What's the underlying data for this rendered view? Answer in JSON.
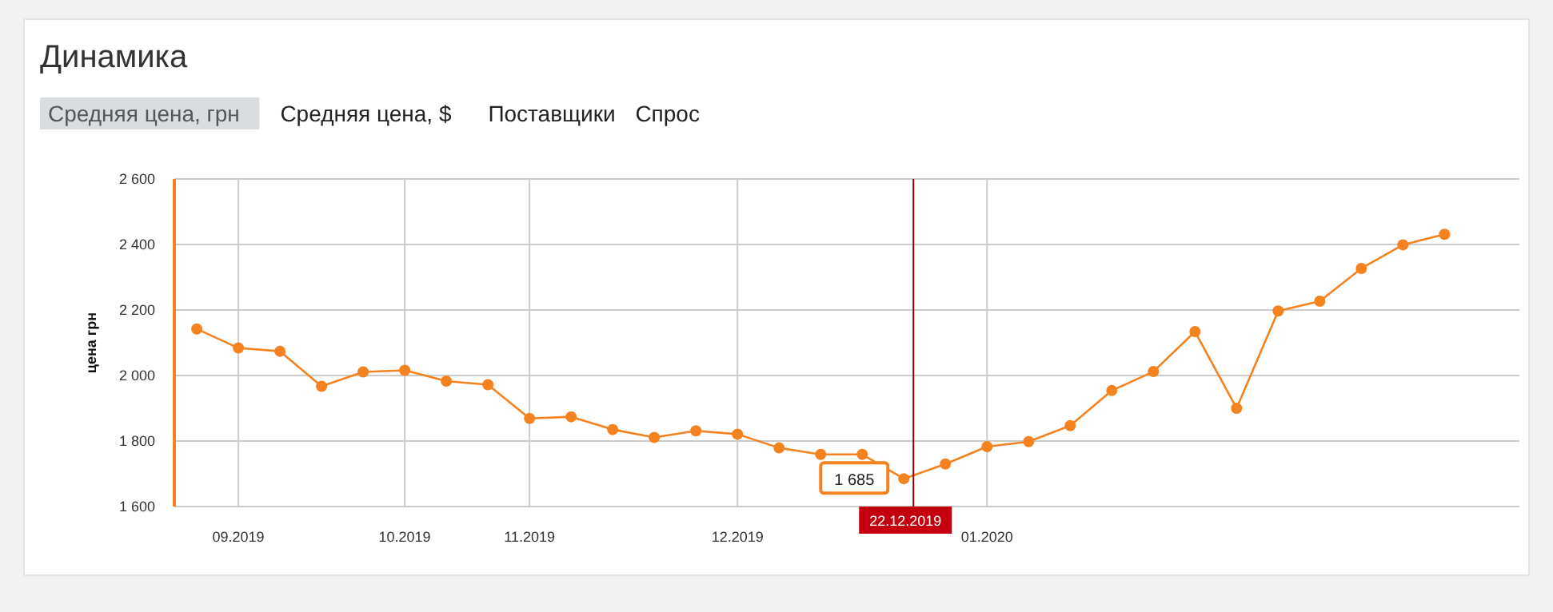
{
  "chart_data": {
    "type": "line",
    "title": "Динамика",
    "ylabel": "цена грн",
    "annotations": [
      "Средняя цена, грн",
      "Средняя цена, $",
      "Поставщики",
      "Спрос",
      "22.12.2019"
    ],
    "categories": [
      null,
      "09.2019",
      null,
      null,
      null,
      "10.2019",
      null,
      null,
      "11.2019",
      null,
      null,
      null,
      null,
      "12.2019",
      null,
      null,
      null,
      null,
      null,
      "01.2020",
      null,
      null,
      null,
      null,
      null,
      null,
      null,
      null,
      null,
      null,
      null
    ],
    "series": [
      {
        "color": "#f58220",
        "values": [
          2142,
          2084,
          2074,
          1967,
          2011,
          2016,
          1983,
          1972,
          1869,
          1874,
          1835,
          1811,
          1831,
          1821,
          1779,
          1759,
          1759,
          1685,
          1730,
          1783,
          1798,
          1847,
          1954,
          2012,
          2134,
          1900,
          2197,
          2227,
          2327,
          2399,
          2431
        ],
        "value_labels": [
          null,
          null,
          null,
          null,
          null,
          null,
          null,
          null,
          null,
          null,
          null,
          null,
          null,
          null,
          null,
          null,
          null,
          "1 685",
          null,
          null,
          null,
          null,
          null,
          null,
          null,
          null,
          null,
          null,
          null,
          null,
          null
        ]
      }
    ],
    "ylim": [
      1600,
      2600
    ],
    "yticks": [
      {
        "value": 1600,
        "label": "1 600"
      },
      {
        "value": 1800,
        "label": "1 800"
      },
      {
        "value": 2000,
        "label": "2 000"
      },
      {
        "value": 2200,
        "label": "2 200"
      },
      {
        "value": 2400,
        "label": "2 400"
      },
      {
        "value": 2600,
        "label": "2 600"
      }
    ],
    "grid": true,
    "marker": "circle",
    "line_style": "solid"
  }
}
